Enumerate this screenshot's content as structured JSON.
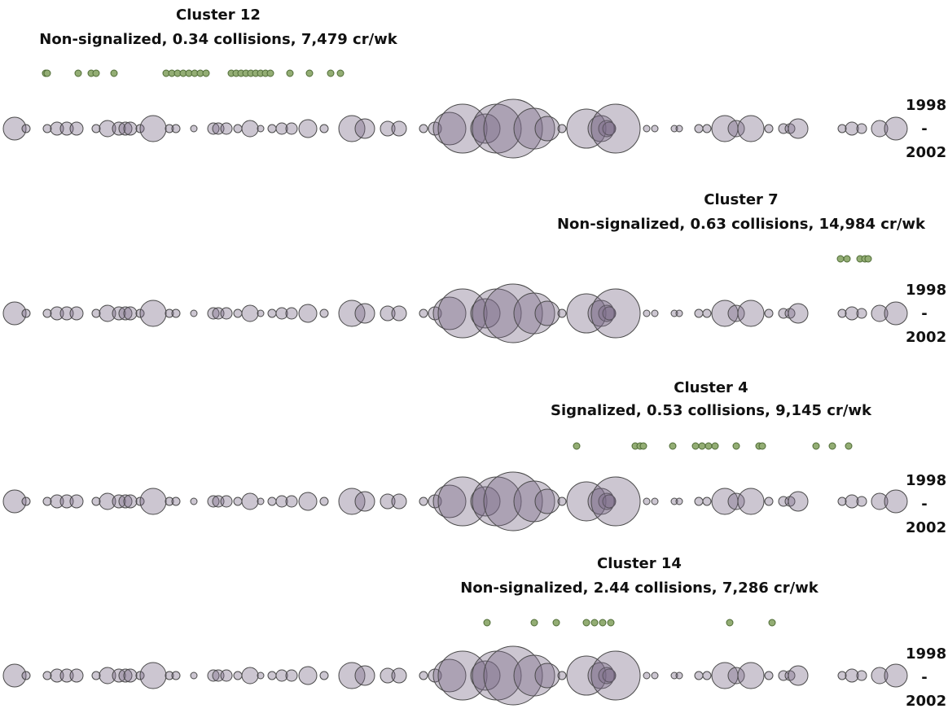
{
  "panels": [
    {
      "title": "Cluster 12",
      "subtitle": "Non-signalized, 0.34 collisions, 7,479 cr/wk",
      "years": [
        "1998",
        "-",
        "2002"
      ]
    },
    {
      "title": "Cluster 7",
      "subtitle": "Non-signalized, 0.63 collisions, 14,984 cr/wk",
      "years": [
        "1998",
        "-",
        "2002"
      ]
    },
    {
      "title": "Cluster 4",
      "subtitle": "Signalized, 0.53 collisions, 9,145 cr/wk",
      "years": [
        "1998",
        "-",
        "2002"
      ]
    },
    {
      "title": "Cluster 14",
      "subtitle": "Non-signalized, 2.44 collisions, 7,286 cr/wk",
      "years": [
        "1998",
        "-",
        "2002"
      ]
    }
  ]
}
